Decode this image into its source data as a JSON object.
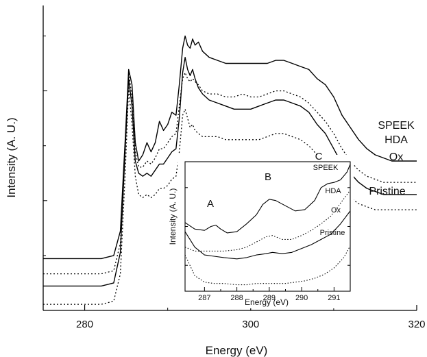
{
  "chart_data": [
    {
      "type": "line",
      "xlabel": "Energy (eV)",
      "ylabel": "Intensity (A. U.)",
      "xlim": [
        275,
        320
      ],
      "ylim": [
        0,
        1
      ],
      "x_ticks": [
        280,
        300,
        320
      ],
      "series": [
        {
          "name": "SPEEK",
          "style": "solid",
          "x": [
            275,
            282,
            283.5,
            284.3,
            284.9,
            285.3,
            285.7,
            286.1,
            286.5,
            287,
            287.5,
            288,
            288.5,
            289,
            289.5,
            290,
            290.5,
            291,
            291.4,
            291.8,
            292.1,
            292.4,
            292.7,
            293.0,
            293.3,
            293.7,
            294.2,
            295,
            296,
            297,
            298,
            299,
            300,
            301,
            302,
            303,
            304,
            305,
            306,
            307,
            308,
            309,
            310,
            311,
            312,
            313,
            314,
            315,
            316,
            317,
            318,
            319,
            320
          ],
          "y": [
            0.17,
            0.17,
            0.18,
            0.26,
            0.57,
            0.79,
            0.74,
            0.55,
            0.49,
            0.51,
            0.55,
            0.52,
            0.55,
            0.62,
            0.59,
            0.61,
            0.65,
            0.64,
            0.74,
            0.86,
            0.9,
            0.87,
            0.86,
            0.89,
            0.87,
            0.88,
            0.85,
            0.83,
            0.82,
            0.81,
            0.81,
            0.81,
            0.81,
            0.81,
            0.81,
            0.82,
            0.82,
            0.81,
            0.8,
            0.79,
            0.76,
            0.74,
            0.7,
            0.64,
            0.6,
            0.56,
            0.53,
            0.51,
            0.5,
            0.49,
            0.49,
            0.49,
            0.49
          ]
        },
        {
          "name": "HDA",
          "style": "dotted",
          "x": [
            275,
            282,
            283.5,
            284.3,
            284.9,
            285.3,
            285.7,
            286.1,
            286.5,
            287,
            287.5,
            288,
            288.5,
            289,
            289.5,
            290,
            290.5,
            291,
            291.4,
            291.8,
            292.1,
            292.4,
            292.7,
            293.0,
            293.3,
            293.7,
            294.2,
            295,
            296,
            297,
            298,
            299,
            300,
            301,
            302,
            303,
            304,
            305,
            306,
            307,
            308,
            309,
            310,
            311,
            312,
            313,
            314,
            315,
            316,
            317,
            318,
            319,
            320
          ],
          "y": [
            0.12,
            0.12,
            0.13,
            0.22,
            0.55,
            0.78,
            0.7,
            0.52,
            0.47,
            0.47,
            0.49,
            0.48,
            0.5,
            0.53,
            0.53,
            0.55,
            0.57,
            0.58,
            0.67,
            0.76,
            0.78,
            0.76,
            0.75,
            0.76,
            0.75,
            0.74,
            0.72,
            0.71,
            0.71,
            0.7,
            0.7,
            0.71,
            0.7,
            0.7,
            0.71,
            0.72,
            0.72,
            0.71,
            0.7,
            0.68,
            0.65,
            0.62,
            0.58,
            0.53,
            0.49,
            0.46,
            0.44,
            0.43,
            0.42,
            0.42,
            0.42,
            0.42,
            0.42
          ]
        },
        {
          "name": "Ox",
          "style": "solid",
          "x": [
            275,
            282,
            283.5,
            284.3,
            284.9,
            285.3,
            285.7,
            286.1,
            286.5,
            287,
            287.5,
            288,
            288.5,
            289,
            289.5,
            290,
            290.5,
            291,
            291.4,
            291.8,
            292.1,
            292.4,
            292.7,
            293.0,
            293.3,
            293.7,
            294.2,
            295,
            296,
            297,
            298,
            299,
            300,
            301,
            302,
            303,
            304,
            305,
            306,
            307,
            308,
            309,
            310,
            311,
            312,
            313,
            314,
            315,
            316,
            317,
            318,
            319,
            320
          ],
          "y": [
            0.08,
            0.08,
            0.09,
            0.19,
            0.54,
            0.76,
            0.67,
            0.49,
            0.45,
            0.44,
            0.45,
            0.44,
            0.46,
            0.48,
            0.48,
            0.5,
            0.52,
            0.53,
            0.63,
            0.78,
            0.83,
            0.79,
            0.77,
            0.79,
            0.76,
            0.73,
            0.71,
            0.69,
            0.68,
            0.67,
            0.66,
            0.66,
            0.66,
            0.67,
            0.68,
            0.69,
            0.69,
            0.68,
            0.67,
            0.65,
            0.61,
            0.58,
            0.53,
            0.48,
            0.45,
            0.42,
            0.4,
            0.39,
            0.38,
            0.38,
            0.38,
            0.38,
            0.38
          ]
        },
        {
          "name": "Pristine",
          "style": "dotted",
          "x": [
            275,
            282,
            283.5,
            284.3,
            284.9,
            285.3,
            285.7,
            286.1,
            286.5,
            287,
            287.5,
            288,
            288.5,
            289,
            289.5,
            290,
            290.5,
            291,
            291.4,
            291.8,
            292.1,
            292.4,
            292.7,
            293.0,
            293.3,
            293.7,
            294.2,
            295,
            296,
            297,
            298,
            299,
            300,
            301,
            302,
            303,
            304,
            305,
            306,
            307,
            308,
            309,
            310,
            311,
            312,
            313,
            314,
            315,
            316,
            317,
            318,
            319,
            320
          ],
          "y": [
            0.02,
            0.02,
            0.03,
            0.12,
            0.46,
            0.73,
            0.61,
            0.44,
            0.38,
            0.37,
            0.38,
            0.37,
            0.38,
            0.4,
            0.4,
            0.41,
            0.43,
            0.44,
            0.52,
            0.64,
            0.66,
            0.63,
            0.6,
            0.61,
            0.59,
            0.58,
            0.57,
            0.57,
            0.57,
            0.56,
            0.56,
            0.56,
            0.56,
            0.56,
            0.57,
            0.58,
            0.58,
            0.57,
            0.56,
            0.54,
            0.51,
            0.48,
            0.44,
            0.4,
            0.37,
            0.35,
            0.34,
            0.33,
            0.33,
            0.33,
            0.33,
            0.33,
            0.33
          ]
        }
      ]
    },
    {
      "type": "line",
      "xlabel": "Energy (eV)",
      "ylabel": "Intensity (A. U.)",
      "xlim": [
        286.4,
        291.5
      ],
      "ylim": [
        0,
        1
      ],
      "x_ticks": [
        287,
        288,
        289,
        290,
        291
      ],
      "annotations": [
        "A",
        "B",
        "C"
      ],
      "series": [
        {
          "name": "SPEEK",
          "style": "solid",
          "x": [
            286.4,
            286.7,
            287.0,
            287.2,
            287.35,
            287.5,
            287.7,
            288.0,
            288.3,
            288.6,
            288.8,
            289.0,
            289.2,
            289.5,
            289.8,
            290.1,
            290.4,
            290.6,
            290.8,
            291.0,
            291.2,
            291.4,
            291.5
          ],
          "y": [
            0.53,
            0.48,
            0.47,
            0.5,
            0.51,
            0.48,
            0.45,
            0.46,
            0.52,
            0.59,
            0.67,
            0.71,
            0.7,
            0.66,
            0.62,
            0.63,
            0.7,
            0.8,
            0.83,
            0.84,
            0.86,
            0.92,
            0.98
          ]
        },
        {
          "name": "HDA",
          "style": "dotted",
          "x": [
            286.4,
            286.7,
            287.0,
            287.3,
            287.6,
            288.0,
            288.3,
            288.6,
            288.9,
            289.1,
            289.4,
            289.7,
            290.0,
            290.3,
            290.6,
            290.9,
            291.2,
            291.5
          ],
          "y": [
            0.34,
            0.31,
            0.31,
            0.31,
            0.31,
            0.32,
            0.34,
            0.38,
            0.42,
            0.43,
            0.4,
            0.4,
            0.43,
            0.47,
            0.52,
            0.58,
            0.68,
            0.78
          ]
        },
        {
          "name": "Ox",
          "style": "solid",
          "x": [
            286.4,
            286.7,
            287.0,
            287.3,
            287.6,
            288.0,
            288.3,
            288.6,
            288.9,
            289.1,
            289.4,
            289.7,
            290.0,
            290.3,
            290.6,
            290.9,
            291.2,
            291.5
          ],
          "y": [
            0.46,
            0.34,
            0.28,
            0.27,
            0.26,
            0.25,
            0.26,
            0.28,
            0.29,
            0.3,
            0.29,
            0.3,
            0.33,
            0.36,
            0.4,
            0.44,
            0.52,
            0.62
          ]
        },
        {
          "name": "Pristine",
          "style": "dotted",
          "x": [
            286.4,
            286.7,
            287.0,
            287.3,
            287.6,
            288.0,
            288.3,
            288.6,
            288.9,
            289.2,
            289.5,
            289.8,
            290.1,
            290.4,
            290.7,
            291.0,
            291.3,
            291.5
          ],
          "y": [
            0.28,
            0.12,
            0.07,
            0.06,
            0.06,
            0.05,
            0.05,
            0.06,
            0.06,
            0.06,
            0.06,
            0.07,
            0.08,
            0.1,
            0.13,
            0.18,
            0.26,
            0.35
          ]
        }
      ]
    }
  ]
}
